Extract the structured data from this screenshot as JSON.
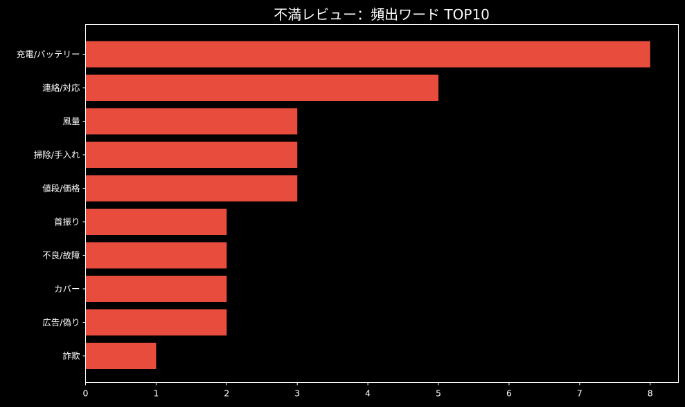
{
  "chart_data": {
    "type": "bar",
    "orientation": "horizontal",
    "title": "不満レビュー：頻出ワード TOP10",
    "xlabel": "",
    "ylabel": "",
    "categories": [
      "充電/バッテリー",
      "連絡/対応",
      "風量",
      "掃除/手入れ",
      "値段/価格",
      "首振り",
      "不良/故障",
      "カバー",
      "広告/偽り",
      "詐欺"
    ],
    "values": [
      8,
      5,
      3,
      3,
      3,
      2,
      2,
      2,
      2,
      1
    ],
    "xlim": [
      0,
      8.4
    ],
    "xticks": [
      0,
      1,
      2,
      3,
      4,
      5,
      6,
      7,
      8
    ],
    "grid": false,
    "legend": "none",
    "colors": {
      "bar": "#e74c3c",
      "background": "#000000",
      "text": "#ffffff",
      "axis": "#ffffff"
    }
  }
}
